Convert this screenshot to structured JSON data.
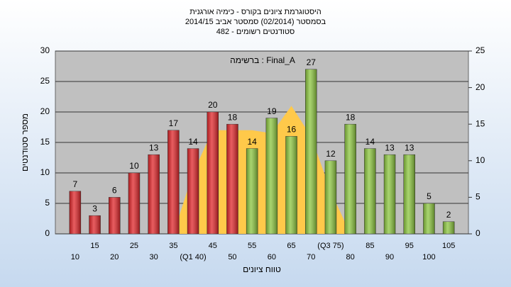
{
  "chart_data": {
    "type": "bar",
    "title_lines": [
      "היסטוגרמת ציונים בקורס - כימיה אורגנית",
      "בסמסטר  (02/2014)  סמסטר אביב 2014/15",
      "482 - סטודנטים רשומים"
    ],
    "annotation": "ברשימה : Final_A",
    "y_label": "מספר סטודנטים",
    "x_label": "טווח ציונים",
    "categories": [
      "10",
      "15",
      "20",
      "25",
      "30",
      "35",
      "(Q1 40)",
      "45",
      "50",
      "55",
      "60",
      "65",
      "70",
      "(Q3 75)",
      "80",
      "85",
      "90",
      "95",
      "100",
      "105"
    ],
    "values": [
      7,
      3,
      6,
      10,
      13,
      17,
      14,
      20,
      18,
      14,
      19,
      16,
      27,
      12,
      18,
      14,
      13,
      13,
      5,
      2
    ],
    "colors": [
      "#e0262a",
      "#e0262a",
      "#e0262a",
      "#e0262a",
      "#e0262a",
      "#e0262a",
      "#e0262a",
      "#e0262a",
      "#e0262a",
      "#8cc63f",
      "#8cc63f",
      "#8cc63f",
      "#8cc63f",
      "#8cc63f",
      "#8cc63f",
      "#8cc63f",
      "#8cc63f",
      "#8cc63f",
      "#8cc63f",
      "#8cc63f"
    ],
    "area": {
      "color": "#ffc94a",
      "values": [
        null,
        null,
        null,
        null,
        null,
        0,
        10,
        17,
        17,
        17,
        16.5,
        21,
        16,
        7,
        0,
        null,
        null,
        null,
        null,
        null
      ]
    },
    "ylim": [
      0,
      30
    ],
    "yticks": [
      0,
      5,
      10,
      15,
      20,
      25,
      30
    ],
    "y2lim": [
      0,
      25
    ],
    "y2ticks": [
      0,
      5,
      10,
      15,
      20,
      25
    ],
    "grid": true
  }
}
